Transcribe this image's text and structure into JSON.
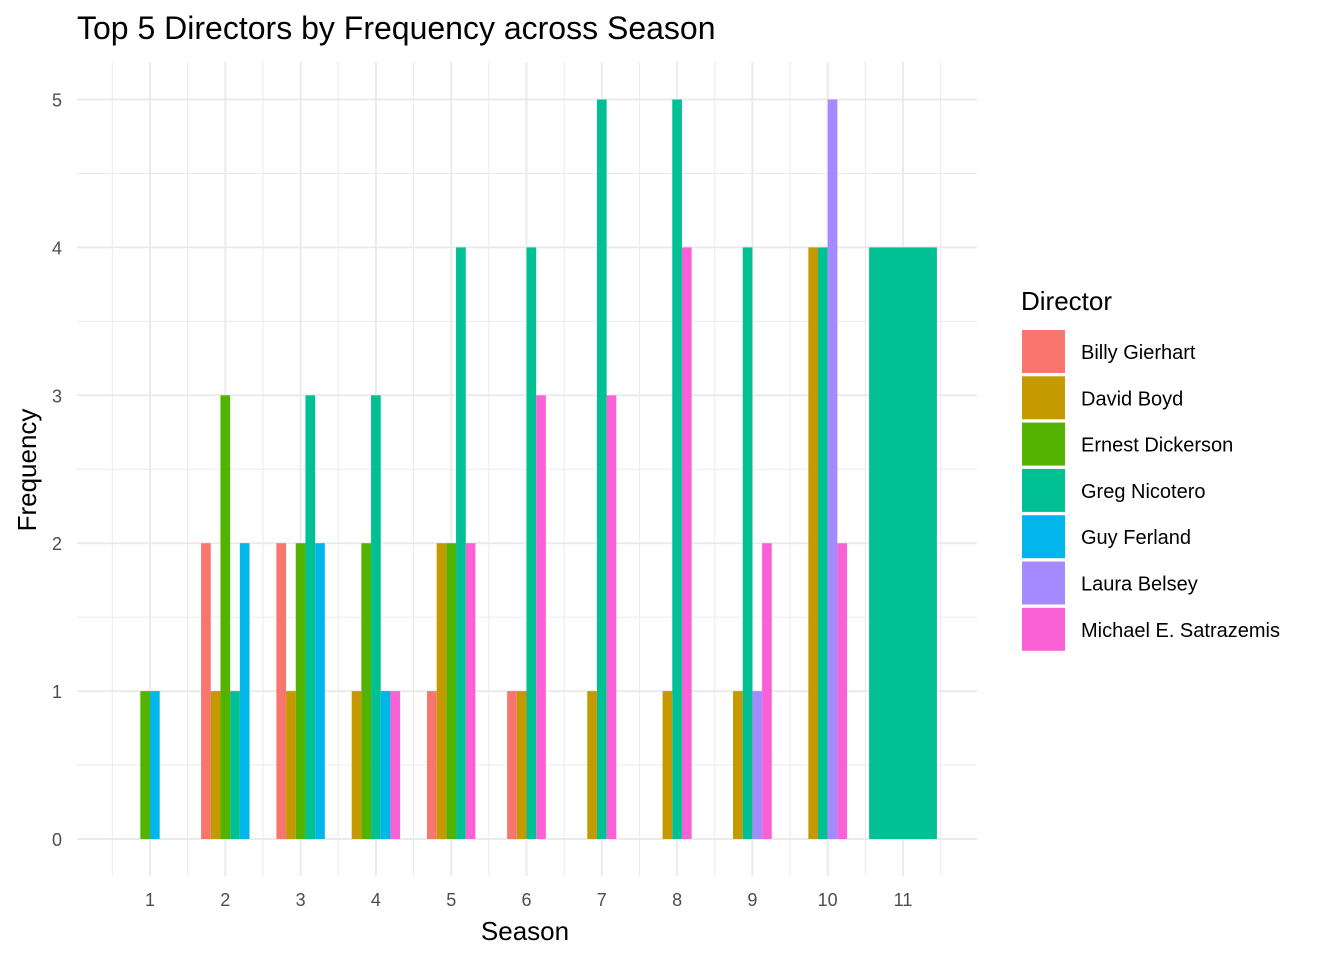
{
  "chart_data": {
    "type": "bar",
    "title": "Top 5 Directors by Frequency across Season",
    "xlabel": "Season",
    "ylabel": "Frequency",
    "ylim": [
      0,
      5.25
    ],
    "yticks": [
      "0",
      "1",
      "2",
      "3",
      "4",
      "5"
    ],
    "categories": [
      "1",
      "2",
      "3",
      "4",
      "5",
      "6",
      "7",
      "8",
      "9",
      "10",
      "11"
    ],
    "grid": true,
    "legend": {
      "title": "Director",
      "position": "right"
    },
    "series": [
      {
        "name": "Billy Gierhart",
        "color": "#F8766D"
      },
      {
        "name": "David Boyd",
        "color": "#C49A00"
      },
      {
        "name": "Ernest Dickerson",
        "color": "#53B400"
      },
      {
        "name": "Greg Nicotero",
        "color": "#00C094"
      },
      {
        "name": "Guy Ferland",
        "color": "#00B6EB"
      },
      {
        "name": "Laura Belsey",
        "color": "#A58AFF"
      },
      {
        "name": "Michael E. Satrazemis",
        "color": "#FB61D7"
      }
    ],
    "bars": [
      {
        "season": "1",
        "items": [
          {
            "director": "Ernest Dickerson",
            "value": 1
          },
          {
            "director": "Guy Ferland",
            "value": 1
          }
        ]
      },
      {
        "season": "2",
        "items": [
          {
            "director": "Billy Gierhart",
            "value": 2
          },
          {
            "director": "David Boyd",
            "value": 1
          },
          {
            "director": "Ernest Dickerson",
            "value": 3
          },
          {
            "director": "Greg Nicotero",
            "value": 1
          },
          {
            "director": "Guy Ferland",
            "value": 2
          }
        ]
      },
      {
        "season": "3",
        "items": [
          {
            "director": "Billy Gierhart",
            "value": 2
          },
          {
            "director": "David Boyd",
            "value": 1
          },
          {
            "director": "Ernest Dickerson",
            "value": 2
          },
          {
            "director": "Greg Nicotero",
            "value": 3
          },
          {
            "director": "Guy Ferland",
            "value": 2
          }
        ]
      },
      {
        "season": "4",
        "items": [
          {
            "director": "David Boyd",
            "value": 1
          },
          {
            "director": "Ernest Dickerson",
            "value": 2
          },
          {
            "director": "Greg Nicotero",
            "value": 3
          },
          {
            "director": "Guy Ferland",
            "value": 1
          },
          {
            "director": "Michael E. Satrazemis",
            "value": 1
          }
        ]
      },
      {
        "season": "5",
        "items": [
          {
            "director": "Billy Gierhart",
            "value": 1
          },
          {
            "director": "David Boyd",
            "value": 2
          },
          {
            "director": "Ernest Dickerson",
            "value": 2
          },
          {
            "director": "Greg Nicotero",
            "value": 4
          },
          {
            "director": "Michael E. Satrazemis",
            "value": 2
          }
        ]
      },
      {
        "season": "6",
        "items": [
          {
            "director": "Billy Gierhart",
            "value": 1
          },
          {
            "director": "David Boyd",
            "value": 1
          },
          {
            "director": "Greg Nicotero",
            "value": 4
          },
          {
            "director": "Michael E. Satrazemis",
            "value": 3
          }
        ]
      },
      {
        "season": "7",
        "items": [
          {
            "director": "David Boyd",
            "value": 1
          },
          {
            "director": "Greg Nicotero",
            "value": 5
          },
          {
            "director": "Michael E. Satrazemis",
            "value": 3
          }
        ]
      },
      {
        "season": "8",
        "items": [
          {
            "director": "David Boyd",
            "value": 1
          },
          {
            "director": "Greg Nicotero",
            "value": 5
          },
          {
            "director": "Michael E. Satrazemis",
            "value": 4
          }
        ]
      },
      {
        "season": "9",
        "items": [
          {
            "director": "David Boyd",
            "value": 1
          },
          {
            "director": "Greg Nicotero",
            "value": 4
          },
          {
            "director": "Laura Belsey",
            "value": 1
          },
          {
            "director": "Michael E. Satrazemis",
            "value": 2
          }
        ]
      },
      {
        "season": "10",
        "items": [
          {
            "director": "David Boyd",
            "value": 4
          },
          {
            "director": "Greg Nicotero",
            "value": 4
          },
          {
            "director": "Laura Belsey",
            "value": 5
          },
          {
            "director": "Michael E. Satrazemis",
            "value": 2
          }
        ]
      },
      {
        "season": "11",
        "items": [
          {
            "director": "Greg Nicotero",
            "value": 4
          }
        ]
      }
    ]
  }
}
